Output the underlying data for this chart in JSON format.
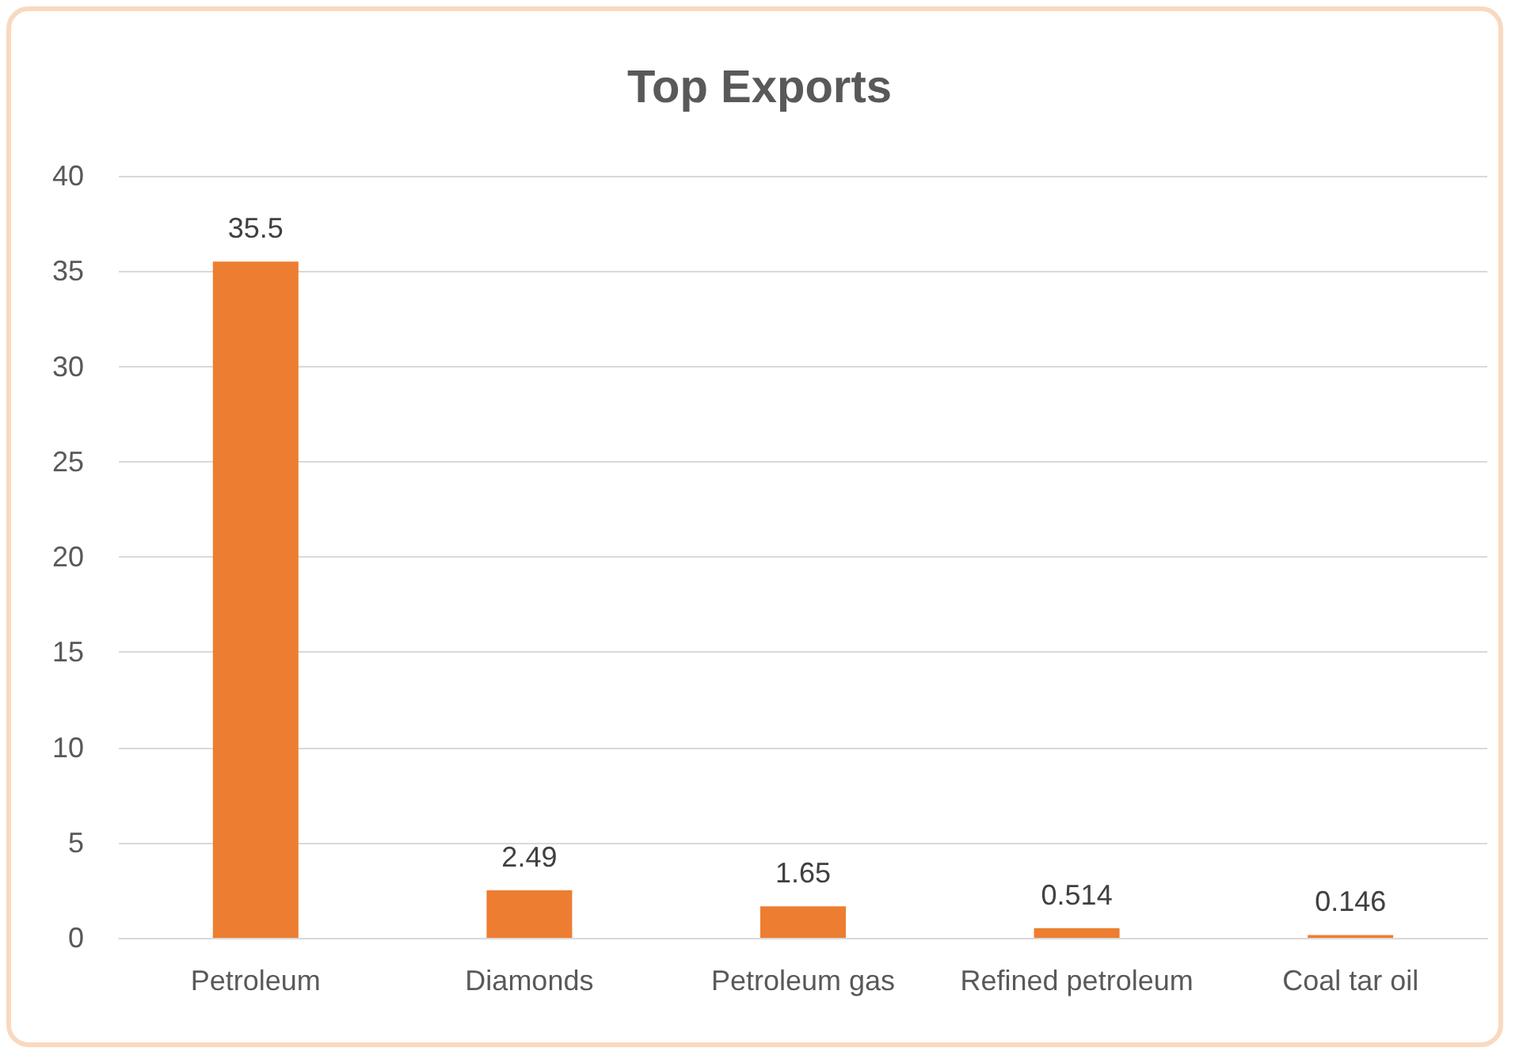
{
  "chart_data": {
    "type": "bar",
    "title": "Top Exports",
    "categories": [
      "Petroleum",
      "Diamonds",
      "Petroleum gas",
      "Refined petroleum",
      "Coal tar oil"
    ],
    "values": [
      35.5,
      2.49,
      1.65,
      0.514,
      0.146
    ],
    "color": "#ed7d31",
    "ylim": [
      0,
      40
    ],
    "yticks": [
      0,
      5,
      10,
      15,
      20,
      25,
      30,
      35,
      40
    ],
    "grid": "y",
    "data_labels": true
  }
}
